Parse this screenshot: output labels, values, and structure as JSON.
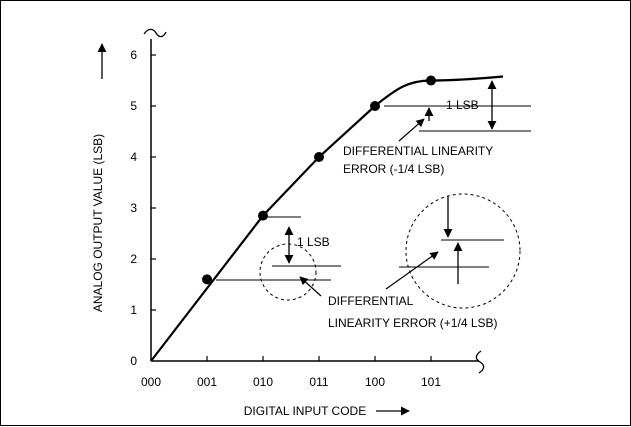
{
  "chart_data": {
    "type": "line",
    "title": "",
    "xlabel": "DIGITAL INPUT CODE",
    "ylabel": "ANALOG OUTPUT VALUE (LSB)",
    "x_categories": [
      "000",
      "001",
      "010",
      "011",
      "100",
      "101"
    ],
    "y_ticks": [
      "0",
      "1",
      "2",
      "3",
      "4",
      "5",
      "6"
    ],
    "xlim": [
      0,
      6
    ],
    "ylim": [
      0,
      6.5
    ],
    "points": [
      {
        "x": 1,
        "y": 1.6
      },
      {
        "x": 2,
        "y": 2.85
      },
      {
        "x": 3,
        "y": 4.0
      },
      {
        "x": 4,
        "y": 5.0
      },
      {
        "x": 5,
        "y": 5.5
      }
    ],
    "annotations": {
      "lsb_left": "1 LSB",
      "lsb_right": "1 LSB",
      "dle_neg_line1": "DIFFERENTIAL LINEARITY",
      "dle_neg_line2": "ERROR (-1/4 LSB)",
      "dle_pos_line1": "DIFFERENTIAL",
      "dle_pos_line2": "LINEARITY ERROR (+1/4 LSB)"
    },
    "grid": false,
    "legend": "none"
  }
}
